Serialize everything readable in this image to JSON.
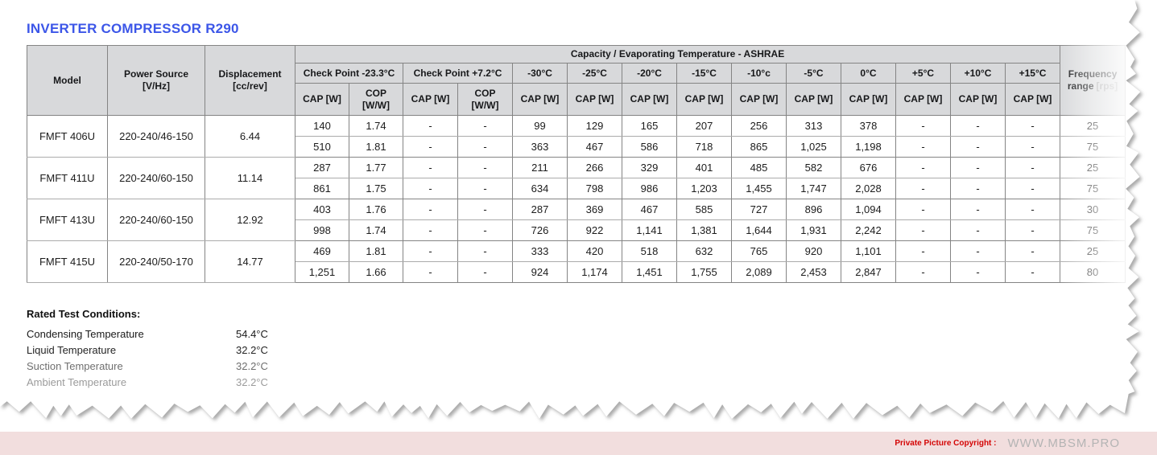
{
  "title": "INVERTER COMPRESSOR R290",
  "table": {
    "header": {
      "model": "Model",
      "power_source": "Power Source\n[V/Hz]",
      "displacement": "Displacement\n[cc/rev]",
      "capacity_group": "Capacity / Evaporating Temperature - ASHRAE",
      "checkpoint1": "Check Point -23.3°C",
      "checkpoint2": "Check Point +7.2°C",
      "cap_label": "CAP [W]",
      "cop_label": "COP\n[W/W]",
      "temps": [
        "-30°C",
        "-25°C",
        "-20°C",
        "-15°C",
        "-10°c",
        "-5°C",
        "0°C",
        "+5°C",
        "+10°C",
        "+15°C"
      ],
      "frequency_label": "Frequency range",
      "frequency_unit": "[rps]"
    },
    "groups": [
      {
        "model": "FMFT 406U",
        "power": "220-240/46-150",
        "displacement": "6.44",
        "rows": [
          {
            "cells": [
              "140",
              "1.74",
              "-",
              "-",
              "99",
              "129",
              "165",
              "207",
              "256",
              "313",
              "378",
              "-",
              "-",
              "-"
            ],
            "freq": "25"
          },
          {
            "cells": [
              "510",
              "1.81",
              "-",
              "-",
              "363",
              "467",
              "586",
              "718",
              "865",
              "1,025",
              "1,198",
              "-",
              "-",
              "-"
            ],
            "freq": "75"
          }
        ]
      },
      {
        "model": "FMFT 411U",
        "power": "220-240/60-150",
        "displacement": "11.14",
        "rows": [
          {
            "cells": [
              "287",
              "1.77",
              "-",
              "-",
              "211",
              "266",
              "329",
              "401",
              "485",
              "582",
              "676",
              "-",
              "-",
              "-"
            ],
            "freq": "25"
          },
          {
            "cells": [
              "861",
              "1.75",
              "-",
              "-",
              "634",
              "798",
              "986",
              "1,203",
              "1,455",
              "1,747",
              "2,028",
              "-",
              "-",
              "-"
            ],
            "freq": "75"
          }
        ]
      },
      {
        "model": "FMFT 413U",
        "power": "220-240/60-150",
        "displacement": "12.92",
        "rows": [
          {
            "cells": [
              "403",
              "1.76",
              "-",
              "-",
              "287",
              "369",
              "467",
              "585",
              "727",
              "896",
              "1,094",
              "-",
              "-",
              "-"
            ],
            "freq": "30"
          },
          {
            "cells": [
              "998",
              "1.74",
              "-",
              "-",
              "726",
              "922",
              "1,141",
              "1,381",
              "1,644",
              "1,931",
              "2,242",
              "-",
              "-",
              "-"
            ],
            "freq": "75"
          }
        ]
      },
      {
        "model": "FMFT 415U",
        "power": "220-240/50-170",
        "displacement": "14.77",
        "rows": [
          {
            "cells": [
              "469",
              "1.81",
              "-",
              "-",
              "333",
              "420",
              "518",
              "632",
              "765",
              "920",
              "1,101",
              "-",
              "-",
              "-"
            ],
            "freq": "25"
          },
          {
            "cells": [
              "1,251",
              "1.66",
              "-",
              "-",
              "924",
              "1,174",
              "1,451",
              "1,755",
              "2,089",
              "2,453",
              "2,847",
              "-",
              "-",
              "-"
            ],
            "freq": "80"
          }
        ]
      }
    ]
  },
  "conditions": {
    "heading": "Rated Test Conditions:",
    "items": [
      {
        "label": "Condensing Temperature",
        "value": "54.4°C"
      },
      {
        "label": "Liquid Temperature",
        "value": "32.2°C"
      },
      {
        "label": "Suction Temperature",
        "value": "32.2°C"
      },
      {
        "label": "Ambient Temperature",
        "value": "32.2°C"
      }
    ]
  },
  "footer": {
    "copyright_label": "Private Picture Copyright :",
    "site": "WWW.MBSM.PRO"
  },
  "colors": {
    "title_blue": "#3c56e8",
    "header_gray": "#d8d9db",
    "row_tint_blue": "#e4ebf7",
    "footer_pink": "#f2dede",
    "copyright_red": "#d40404",
    "site_gray": "#b4b4b4"
  }
}
